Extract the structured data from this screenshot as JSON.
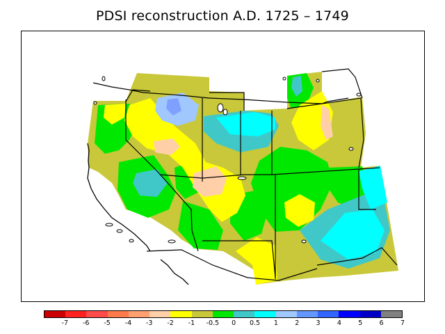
{
  "title": "PDSI reconstruction A.D. 1725 – 1749",
  "map": {
    "region": "Western United States",
    "variable": "Palmer Drought Severity Index"
  },
  "legend": {
    "tick_labels": [
      "-7",
      "-6",
      "-5",
      "-4",
      "-3",
      "-2",
      "-1",
      "-0.5",
      "0",
      "0.5",
      "1",
      "2",
      "3",
      "4",
      "5",
      "6",
      "7"
    ],
    "colors": [
      "#cc0000",
      "#ff2020",
      "#ff4a4a",
      "#ff7a4a",
      "#ffa070",
      "#ffd0a8",
      "#ffff00",
      "#c8c83a",
      "#00e800",
      "#40c8c8",
      "#00ffff",
      "#a0c8ff",
      "#6496ff",
      "#3264ff",
      "#0000ff",
      "#0000c8",
      "#808080"
    ]
  },
  "palette": {
    "very_wet_blue": "#80a0ff",
    "light_blue": "#a0c8ff",
    "cyan": "#00ffff",
    "teal": "#40c8c8",
    "green": "#00e800",
    "olive": "#c8c83a",
    "yellow": "#ffff00",
    "peach": "#ffd0a8"
  }
}
